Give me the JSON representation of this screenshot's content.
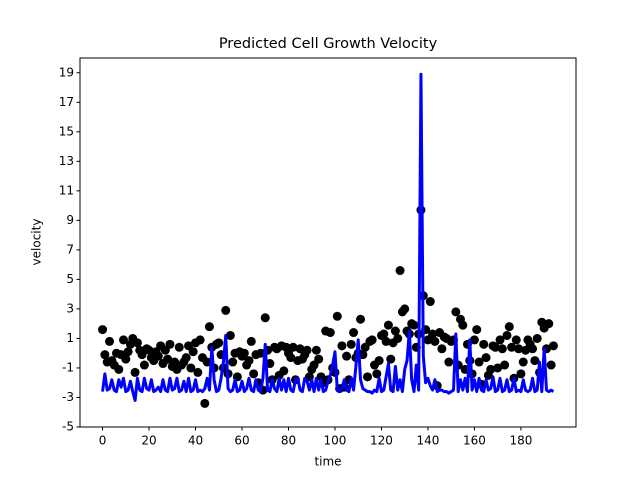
{
  "chart_data": {
    "type": "scatter",
    "title": "Predicted Cell Growth Velocity",
    "x_label": "time",
    "y_label": "velocity",
    "x": [
      0,
      1,
      2,
      3,
      4,
      5,
      6,
      7,
      8,
      9,
      10,
      11,
      12,
      13,
      14,
      15,
      16,
      17,
      18,
      19,
      20,
      21,
      22,
      23,
      24,
      25,
      26,
      27,
      28,
      29,
      30,
      31,
      32,
      33,
      34,
      35,
      36,
      37,
      38,
      39,
      40,
      41,
      42,
      43,
      44,
      45,
      46,
      47,
      48,
      49,
      50,
      51,
      52,
      53,
      54,
      55,
      56,
      57,
      58,
      59,
      60,
      61,
      62,
      63,
      64,
      65,
      66,
      67,
      68,
      69,
      70,
      71,
      72,
      73,
      74,
      75,
      76,
      77,
      78,
      79,
      80,
      81,
      82,
      83,
      84,
      85,
      86,
      87,
      88,
      89,
      90,
      91,
      92,
      93,
      94,
      95,
      96,
      97,
      98,
      99,
      100,
      101,
      102,
      103,
      104,
      105,
      106,
      107,
      108,
      109,
      110,
      111,
      112,
      113,
      114,
      115,
      116,
      117,
      118,
      119,
      120,
      121,
      122,
      123,
      124,
      125,
      126,
      127,
      128,
      129,
      130,
      131,
      132,
      133,
      134,
      135,
      136,
      137,
      138,
      139,
      140,
      141,
      142,
      143,
      144,
      145,
      146,
      147,
      148,
      149,
      150,
      151,
      152,
      153,
      154,
      155,
      156,
      157,
      158,
      159,
      160,
      161,
      162,
      163,
      164,
      165,
      166,
      167,
      168,
      169,
      170,
      171,
      172,
      173,
      174,
      175,
      176,
      177,
      178,
      179,
      180,
      181,
      182,
      183,
      184,
      185,
      186,
      187,
      188,
      189,
      190,
      191,
      192,
      193,
      194
    ],
    "series": [
      {
        "type": "scatter",
        "color": "#000000",
        "values": [
          1.6,
          -0.1,
          -0.6,
          0.8,
          -0.5,
          -0.8,
          0.0,
          -1.1,
          -0.1,
          0.9,
          -0.4,
          0.1,
          0.6,
          1.0,
          -1.3,
          0.7,
          0.2,
          -0.1,
          -0.8,
          0.3,
          0.2,
          -0.3,
          -0.5,
          0.1,
          -0.2,
          0.5,
          -0.7,
          0.2,
          -0.4,
          0.6,
          -0.9,
          -0.6,
          -1.1,
          0.4,
          -0.8,
          -0.6,
          -0.3,
          0.5,
          -1.0,
          0.1,
          0.7,
          -1.3,
          0.9,
          -0.3,
          -3.4,
          -0.6,
          1.8,
          0.4,
          -1.0,
          0.6,
          0.7,
          -0.1,
          -1.0,
          2.9,
          -1.4,
          1.2,
          -0.6,
          0.0,
          -1.6,
          0.1,
          -0.2,
          0.0,
          -0.8,
          -0.5,
          0.8,
          -1.4,
          -0.1,
          -2.0,
          0.0,
          -2.5,
          2.4,
          0.2,
          -0.7,
          -1.8,
          0.4,
          0.3,
          -1.5,
          0.5,
          -1.2,
          0.4,
          0.0,
          -0.3,
          0.4,
          -1.8,
          -0.5,
          0.3,
          -0.4,
          -0.1,
          0.2,
          -1.6,
          -1.1,
          -0.8,
          0.2,
          -0.4,
          -1.6,
          -2.0,
          1.5,
          -1.8,
          1.4,
          -1.0,
          -1.3,
          2.5,
          -2.4,
          0.5,
          -2.3,
          -0.2,
          -1.8,
          0.6,
          1.4,
          -0.3,
          0.0,
          2.3,
          -0.1,
          0.4,
          -1.6,
          0.8,
          0.9,
          -0.8,
          -1.4,
          -0.5,
          1.2,
          1.3,
          0.8,
          1.9,
          -0.4,
          0.7,
          1.5,
          1.0,
          5.6,
          2.8,
          3.0,
          1.5,
          1.3,
          2.0,
          1.9,
          0.4,
          1.3,
          9.7,
          3.9,
          1.6,
          0.9,
          3.5,
          1.3,
          0.8,
          -2.2,
          1.4,
          0.3,
          1.1,
          1.0,
          -0.6,
          0.8,
          0.9,
          2.8,
          -0.8,
          2.3,
          1.9,
          -1.1,
          0.6,
          -0.5,
          -1.4,
          0.9,
          1.6,
          -0.6,
          -2.1,
          0.6,
          -0.3,
          -1.5,
          -1.1,
          0.5,
          0.4,
          -1.0,
          0.9,
          0.3,
          -0.8,
          1.2,
          1.8,
          0.4,
          -1.7,
          0.9,
          0.3,
          -1.4,
          -0.6,
          0.2,
          0.9,
          0.6,
          0.3,
          -0.5,
          1.0,
          -1.3,
          2.1,
          1.7,
          0.3,
          2.0,
          -0.8,
          0.5
        ]
      },
      {
        "type": "line",
        "color": "#0000ff",
        "values": [
          -2.6,
          -1.4,
          -2.5,
          -2.4,
          -1.8,
          -2.5,
          -2.6,
          -1.8,
          -2.3,
          -1.7,
          -2.6,
          -2.5,
          -1.9,
          -2.6,
          -3.2,
          -1.7,
          -2.5,
          -2.6,
          -1.7,
          -2.4,
          -2.5,
          -1.8,
          -2.6,
          -2.5,
          -2.3,
          -2.6,
          -1.8,
          -2.5,
          -2.6,
          -1.7,
          -2.5,
          -2.4,
          -1.7,
          -2.6,
          -2.5,
          -1.9,
          -2.6,
          -1.7,
          -2.6,
          -2.5,
          -1.8,
          -2.6,
          -2.5,
          -2.6,
          -2.4,
          -1.7,
          -2.5,
          0.4,
          -1.8,
          -2.6,
          -2.5,
          -1.7,
          -0.6,
          1.2,
          -2.4,
          -2.6,
          -2.5,
          -1.8,
          -2.6,
          -2.5,
          -1.9,
          -2.6,
          -2.4,
          -1.7,
          -2.5,
          -2.6,
          -1.8,
          -2.5,
          -2.6,
          -1.7,
          0.6,
          -2.5,
          -2.6,
          -1.8,
          -2.4,
          -2.6,
          -1.7,
          -2.5,
          -1.8,
          -2.6,
          -1.7,
          -2.5,
          -2.6,
          -1.8,
          -1.7,
          -2.5,
          -2.6,
          -1.7,
          -1.9,
          -2.5,
          -1.8,
          -2.6,
          -1.7,
          -2.5,
          -1.8,
          -2.6,
          -2.5,
          -1.9,
          -1.5,
          -0.8,
          0.1,
          -2.5,
          -2.6,
          -2.4,
          -1.8,
          -2.5,
          -2.6,
          -1.7,
          -2.5,
          -0.9,
          0.9,
          -1.8,
          -2.4,
          -2.5,
          -2.6,
          -2.6,
          -2.7,
          -2.5,
          -2.6,
          -1.7,
          -2.6,
          -2.5,
          -1.6,
          -0.7,
          -2.5,
          -2.6,
          -0.9,
          -2.5,
          -1.8,
          -2.6,
          -1.1,
          -0.5,
          1.5,
          -1.8,
          -2.6,
          -0.8,
          -2.5,
          18.9,
          -0.2,
          -2.0,
          -1.7,
          -2.2,
          -2.5,
          -1.8,
          -2.6,
          -2.5,
          -2.5,
          -2.6,
          -2.6,
          -2.7,
          -2.6,
          -2.5,
          1.3,
          -2.6,
          -1.8,
          -2.5,
          -1.7,
          -2.6,
          0.9,
          -2.5,
          -1.8,
          -2.6,
          -1.7,
          -2.5,
          -2.6,
          -1.8,
          -2.5,
          -2.4,
          -1.6,
          -2.6,
          -2.5,
          -1.7,
          -2.6,
          -2.5,
          -1.8,
          -2.6,
          -2.5,
          -1.7,
          -2.6,
          -2.5,
          -2.6,
          -1.8,
          -2.5,
          -2.6,
          -2.5,
          -1.7,
          -2.6,
          -2.5,
          -0.6,
          -2.6,
          0.3,
          -2.5,
          -2.6,
          -2.5,
          -2.6
        ]
      }
    ],
    "xlim": [
      -9.7,
      203.7
    ],
    "xticks": [
      0,
      20,
      40,
      60,
      80,
      100,
      120,
      140,
      160,
      180
    ],
    "ylim": [
      -5,
      20
    ],
    "yticks": [
      -5,
      -3,
      -1,
      1,
      3,
      5,
      7,
      9,
      11,
      13,
      15,
      17,
      19
    ]
  }
}
